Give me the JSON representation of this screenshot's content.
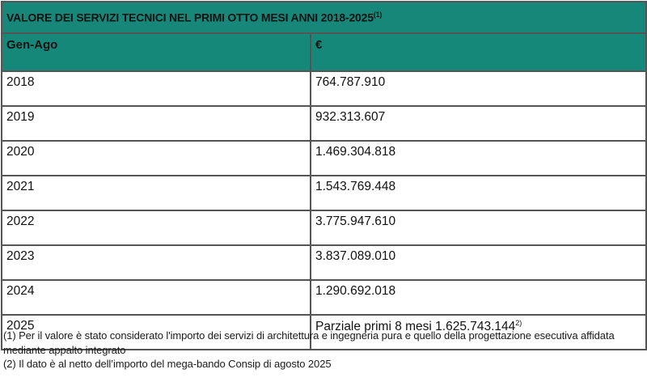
{
  "table": {
    "title": "VALORE DEI SERVIZI TECNICI NEL PRIMI OTTO MESI ANNI 2018-2025",
    "title_note": "(1)",
    "header": {
      "col1": "Gen-Ago",
      "col2": "€"
    },
    "rows": [
      {
        "year": "2018",
        "value": "764.787.910"
      },
      {
        "year": "2019",
        "value": "932.313.607"
      },
      {
        "year": "2020",
        "value": "1.469.304.818"
      },
      {
        "year": "2021",
        "value": "1.543.769.448"
      },
      {
        "year": "2022",
        "value": "3.775.947.610"
      },
      {
        "year": "2023",
        "value": "3.837.089.010"
      },
      {
        "year": "2024",
        "value": "1.290.692.018"
      },
      {
        "year": "2025",
        "value": "Parziale primi 8 mesi 1.625.743.144",
        "note": "2)"
      }
    ],
    "colors": {
      "header_background": "#16887a",
      "border": "#555555"
    }
  },
  "footnotes": [
    "(1) Per il valore è stato considerato l'importo dei servizi di architettura e ingegneria pura e quello della progettazione esecutiva affidata mediante appalto integrato",
    "(2) Il dato è al netto dell’importo del mega-bando Consip di agosto 2025"
  ]
}
